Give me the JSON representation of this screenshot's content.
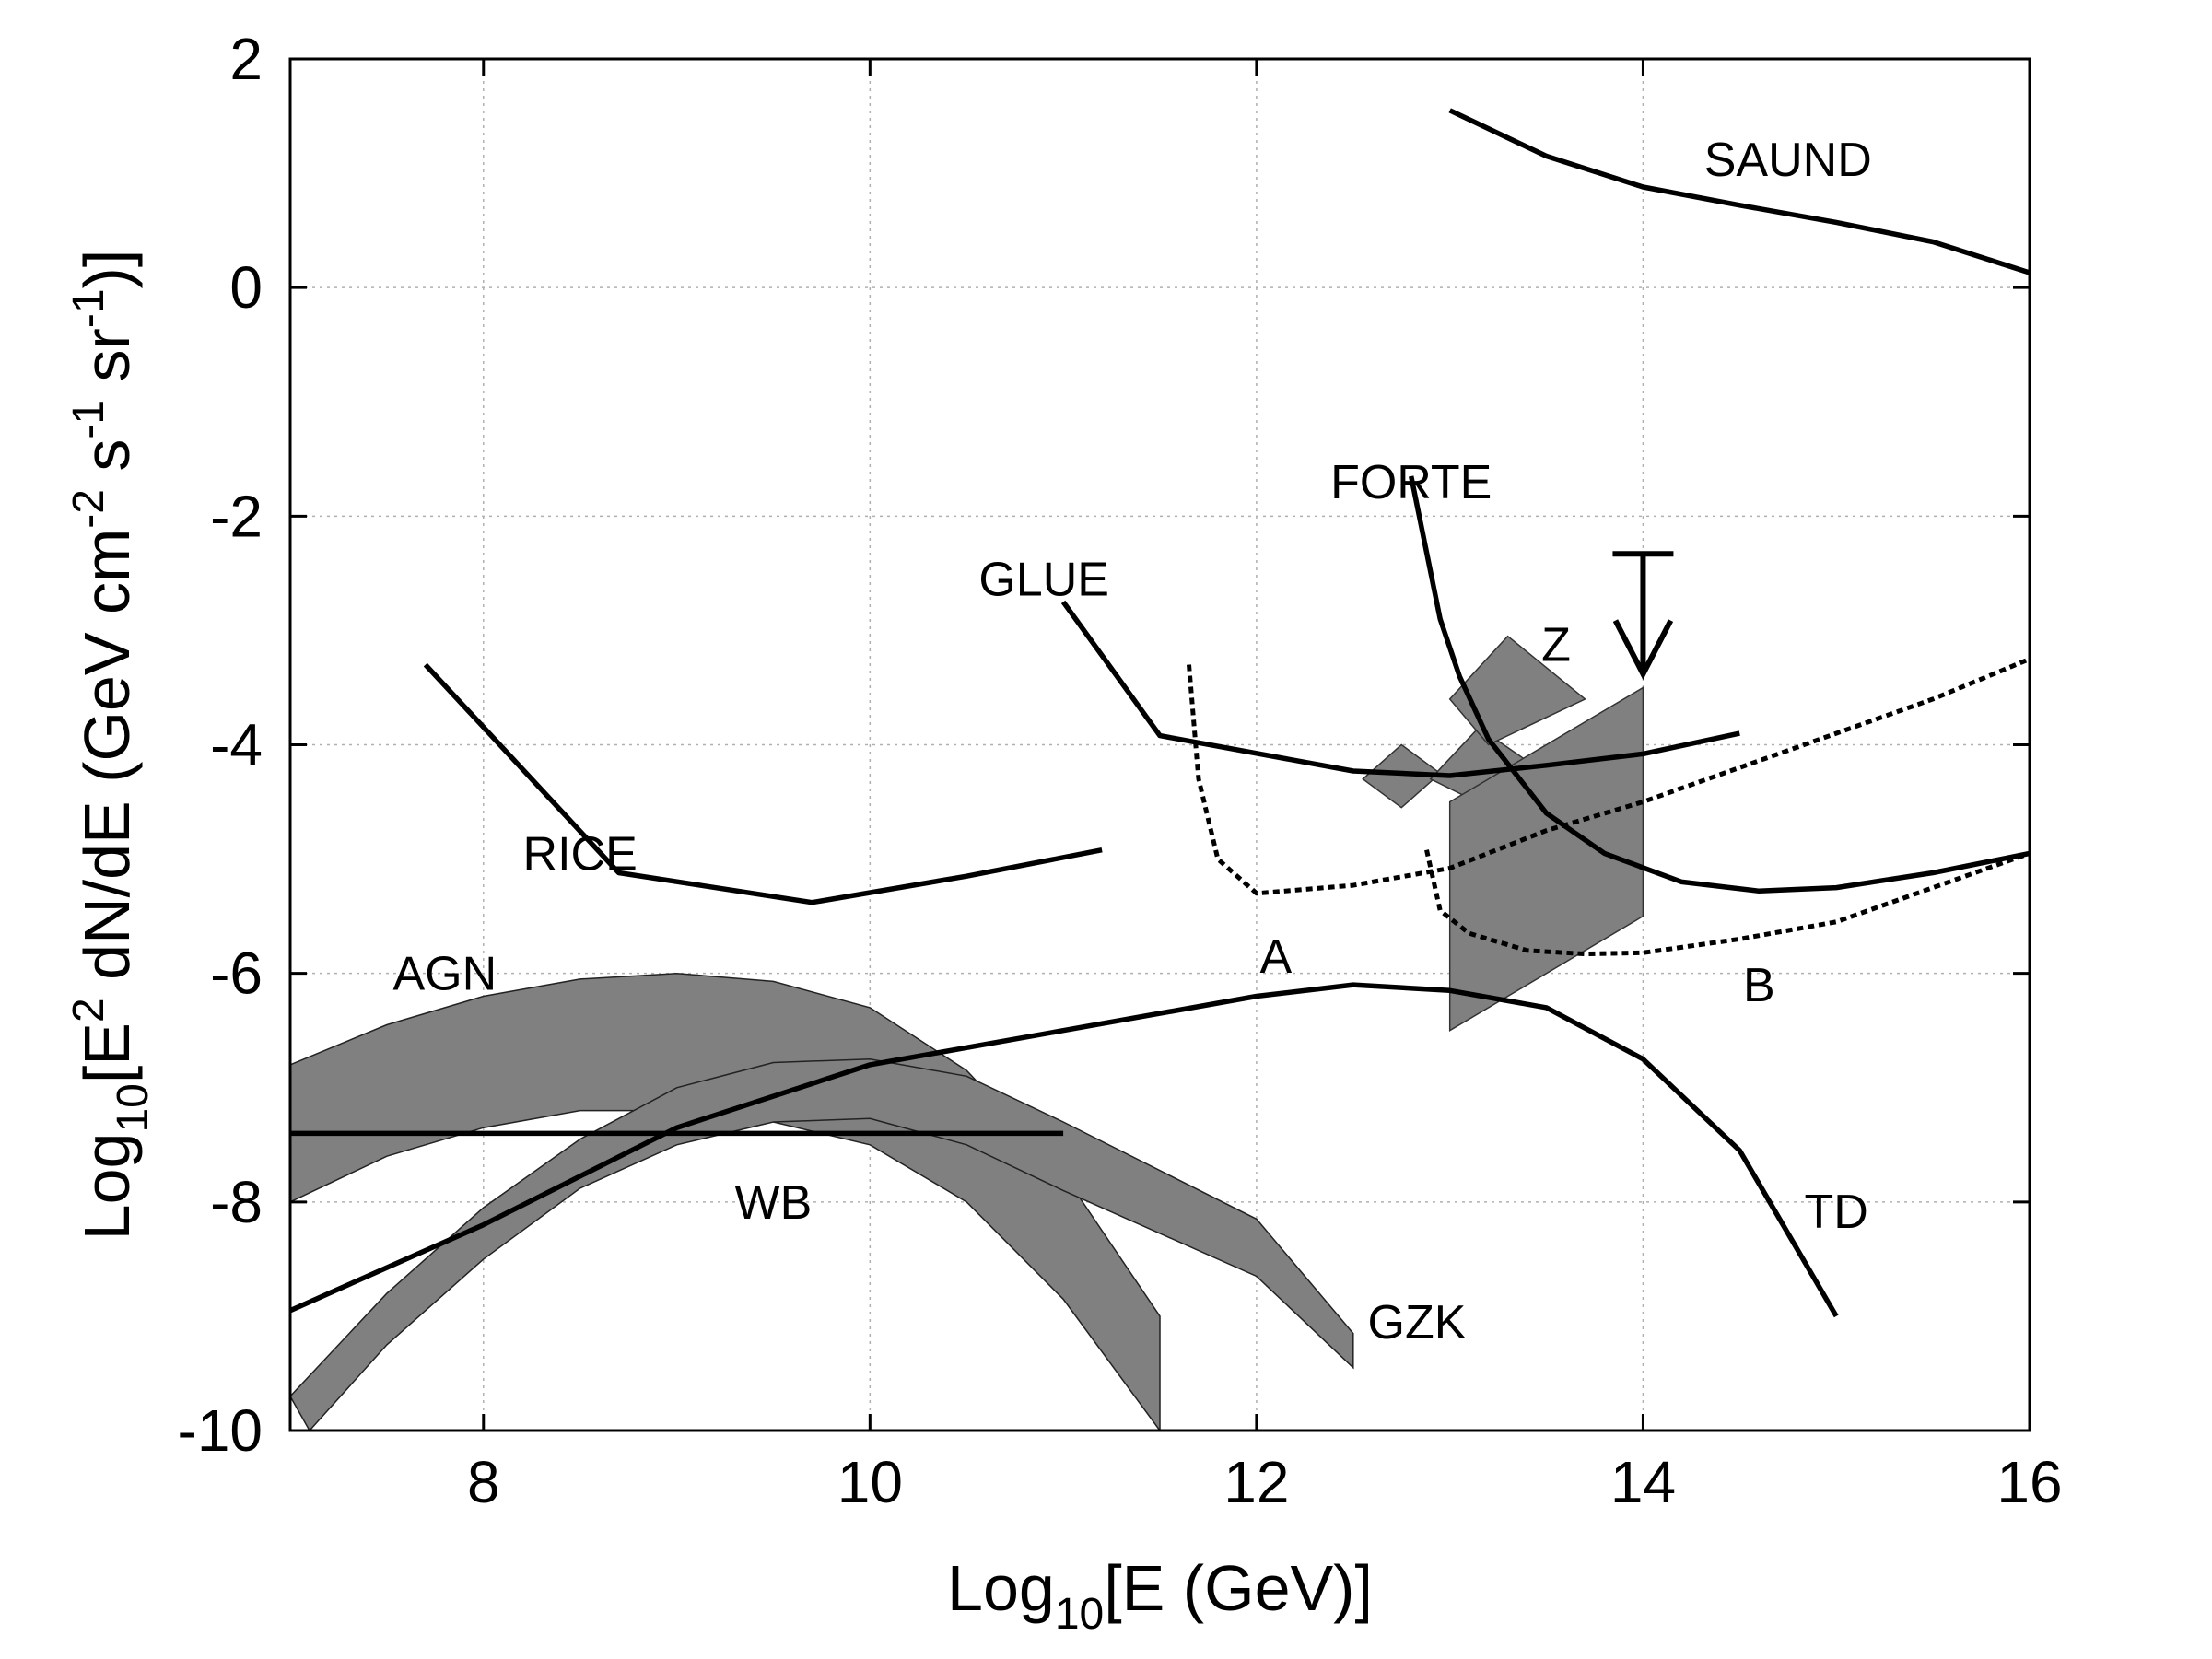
{
  "chart_data": {
    "type": "line",
    "xlabel": {
      "pre": "Log",
      "sub": "10",
      "post": "[E (GeV)]"
    },
    "ylabel": {
      "pre": "Log",
      "sub": "10",
      "mid1": "[E",
      "sup1": "2",
      "mid2": " dN/dE (GeV cm",
      "sup2": "-2",
      "mid3": " s",
      "sup3": "-1",
      "mid4": " sr",
      "sup4": "-1",
      "post": ")]"
    },
    "xlim": [
      7,
      16
    ],
    "ylim": [
      -10,
      2
    ],
    "xticks": [
      8,
      10,
      12,
      14,
      16
    ],
    "yticks": [
      -10,
      -8,
      -6,
      -4,
      -2,
      0,
      2
    ],
    "grid": true,
    "series": [
      {
        "name": "SAUND",
        "style": "solid",
        "points": [
          [
            13.0,
            1.55
          ],
          [
            13.5,
            1.15
          ],
          [
            14.0,
            0.88
          ],
          [
            14.5,
            0.72
          ],
          [
            15.0,
            0.57
          ],
          [
            15.5,
            0.4
          ],
          [
            16.0,
            0.13
          ]
        ]
      },
      {
        "name": "FORTE",
        "style": "solid",
        "points": [
          [
            12.8,
            -1.65
          ],
          [
            12.95,
            -2.9
          ],
          [
            13.05,
            -3.4
          ],
          [
            13.2,
            -3.95
          ],
          [
            13.5,
            -4.6
          ],
          [
            13.8,
            -4.95
          ],
          [
            14.2,
            -5.2
          ],
          [
            14.6,
            -5.28
          ],
          [
            15.0,
            -5.25
          ],
          [
            15.5,
            -5.12
          ],
          [
            16.0,
            -4.95
          ]
        ]
      },
      {
        "name": "GLUE",
        "style": "solid",
        "points": [
          [
            11.0,
            -2.75
          ],
          [
            11.5,
            -3.92
          ],
          [
            12.5,
            -4.23
          ],
          [
            13.0,
            -4.27
          ],
          [
            13.5,
            -4.18
          ],
          [
            14.0,
            -4.08
          ],
          [
            14.5,
            -3.9
          ]
        ]
      },
      {
        "name": "RICE",
        "style": "solid",
        "points": [
          [
            7.7,
            -3.3
          ],
          [
            8.7,
            -5.12
          ],
          [
            9.7,
            -5.38
          ],
          [
            10.5,
            -5.15
          ],
          [
            11.2,
            -4.92
          ]
        ]
      },
      {
        "name": "A",
        "style": "dashed",
        "points": [
          [
            11.65,
            -3.3
          ],
          [
            11.7,
            -4.3
          ],
          [
            11.8,
            -5.0
          ],
          [
            12.0,
            -5.3
          ],
          [
            12.5,
            -5.23
          ],
          [
            13.0,
            -5.08
          ],
          [
            13.5,
            -4.75
          ],
          [
            14.0,
            -4.5
          ],
          [
            14.5,
            -4.2
          ],
          [
            15.0,
            -3.9
          ],
          [
            15.5,
            -3.6
          ],
          [
            16.0,
            -3.25
          ]
        ]
      },
      {
        "name": "B",
        "style": "dashed",
        "points": [
          [
            12.88,
            -4.92
          ],
          [
            12.95,
            -5.45
          ],
          [
            13.1,
            -5.65
          ],
          [
            13.4,
            -5.8
          ],
          [
            13.7,
            -5.83
          ],
          [
            14.0,
            -5.82
          ],
          [
            14.5,
            -5.7
          ],
          [
            15.0,
            -5.55
          ],
          [
            15.5,
            -5.25
          ],
          [
            16.0,
            -4.95
          ]
        ]
      },
      {
        "name": "TD",
        "style": "solid",
        "points": [
          [
            7.0,
            -8.95
          ],
          [
            8.0,
            -8.2
          ],
          [
            9.0,
            -7.35
          ],
          [
            10.0,
            -6.8
          ],
          [
            11.0,
            -6.5
          ],
          [
            12.0,
            -6.2
          ],
          [
            12.5,
            -6.1
          ],
          [
            13.0,
            -6.15
          ],
          [
            13.5,
            -6.3
          ],
          [
            14.0,
            -6.75
          ],
          [
            14.5,
            -7.55
          ],
          [
            15.0,
            -9.0
          ]
        ]
      },
      {
        "name": "WB",
        "style": "solid",
        "points": [
          [
            7.0,
            -7.4
          ],
          [
            11.0,
            -7.4
          ]
        ]
      }
    ],
    "bands": [
      {
        "name": "AGN",
        "upper": [
          [
            7.0,
            -6.8
          ],
          [
            7.5,
            -6.45
          ],
          [
            8.0,
            -6.2
          ],
          [
            8.5,
            -6.05
          ],
          [
            9.0,
            -6.0
          ],
          [
            9.5,
            -6.07
          ],
          [
            10.0,
            -6.3
          ],
          [
            10.5,
            -6.85
          ],
          [
            11.0,
            -7.75
          ],
          [
            11.5,
            -9.0
          ]
        ],
        "lower": [
          [
            7.0,
            -8.0
          ],
          [
            7.5,
            -7.6
          ],
          [
            8.0,
            -7.35
          ],
          [
            8.5,
            -7.2
          ],
          [
            9.0,
            -7.2
          ],
          [
            9.5,
            -7.3
          ],
          [
            10.0,
            -7.5
          ],
          [
            10.5,
            -8.0
          ],
          [
            11.0,
            -8.85
          ],
          [
            11.5,
            -10.0
          ]
        ]
      },
      {
        "name": "GZK",
        "upper": [
          [
            7.0,
            -9.7
          ],
          [
            7.5,
            -8.8
          ],
          [
            8.0,
            -8.05
          ],
          [
            8.5,
            -7.45
          ],
          [
            9.0,
            -7.0
          ],
          [
            9.5,
            -6.78
          ],
          [
            10.0,
            -6.75
          ],
          [
            10.5,
            -6.9
          ],
          [
            11.0,
            -7.3
          ],
          [
            12.0,
            -8.15
          ],
          [
            12.5,
            -9.15
          ]
        ],
        "lower": [
          [
            7.1,
            -10.0
          ],
          [
            7.5,
            -9.25
          ],
          [
            8.0,
            -8.5
          ],
          [
            8.5,
            -7.88
          ],
          [
            9.0,
            -7.5
          ],
          [
            9.5,
            -7.3
          ],
          [
            10.0,
            -7.27
          ],
          [
            10.5,
            -7.5
          ],
          [
            11.0,
            -7.9
          ],
          [
            12.0,
            -8.65
          ],
          [
            12.5,
            -9.45
          ]
        ]
      },
      {
        "name": "Z",
        "polygons": [
          [
            [
              12.55,
              -4.3
            ],
            [
              12.75,
              -4.0
            ],
            [
              12.95,
              -4.25
            ],
            [
              12.75,
              -4.55
            ]
          ],
          [
            [
              12.9,
              -4.3
            ],
            [
              13.15,
              -3.85
            ],
            [
              13.45,
              -4.2
            ],
            [
              13.2,
              -4.55
            ]
          ],
          [
            [
              13.0,
              -3.6
            ],
            [
              13.3,
              -3.05
            ],
            [
              13.7,
              -3.6
            ],
            [
              13.2,
              -4.0
            ]
          ],
          [
            [
              13.0,
              -4.5
            ],
            [
              14.0,
              -3.5
            ],
            [
              14.0,
              -5.5
            ],
            [
              13.0,
              -6.5
            ]
          ]
        ]
      }
    ],
    "limit_arrow": {
      "x": 14.0,
      "y_top": -2.33,
      "y_bottom": -3.38
    },
    "annotations": [
      {
        "text": "SAUND",
        "x": 14.75,
        "y": 1.12
      },
      {
        "text": "FORTE",
        "x": 12.8,
        "y": -1.7
      },
      {
        "text": "GLUE",
        "x": 10.9,
        "y": -2.55
      },
      {
        "text": "Z",
        "x": 13.55,
        "y": -3.12
      },
      {
        "text": "RICE",
        "x": 8.5,
        "y": -4.95
      },
      {
        "text": "A",
        "x": 12.1,
        "y": -5.85
      },
      {
        "text": "AGN",
        "x": 7.8,
        "y": -6.0
      },
      {
        "text": "B",
        "x": 14.6,
        "y": -6.1
      },
      {
        "text": "WB",
        "x": 9.5,
        "y": -8.0
      },
      {
        "text": "TD",
        "x": 15.0,
        "y": -8.08
      },
      {
        "text": "GZK",
        "x": 12.83,
        "y": -9.05
      }
    ]
  }
}
